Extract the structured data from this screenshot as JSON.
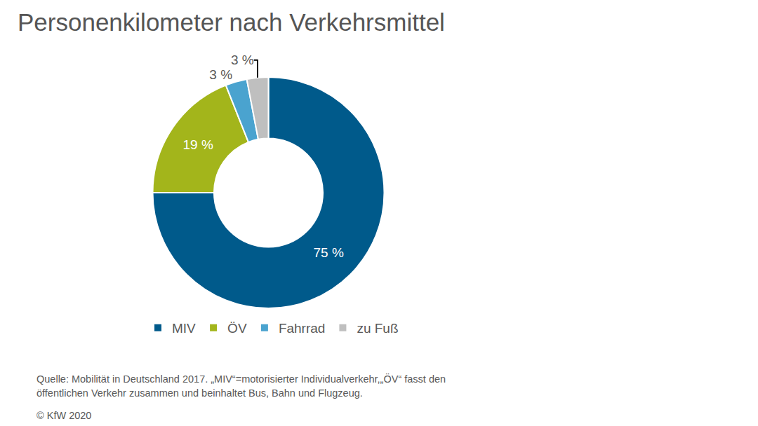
{
  "chart_data": {
    "type": "pie",
    "title": "Personenkilometer nach Verkehrsmittel",
    "categories": [
      "MIV",
      "ÖV",
      "Fahrrad",
      "zu Fuß"
    ],
    "values": [
      75,
      19,
      3,
      3
    ],
    "value_labels": [
      "75 %",
      "19 %",
      "3 %",
      "3 %"
    ],
    "colors": [
      "#005a8b",
      "#a3b51b",
      "#4aa3cf",
      "#bfbfbf"
    ],
    "data_labels": true,
    "legend": "bottom",
    "annotations": [
      "Quelle: Mobilität in Deutschland 2017. „MIV“=motorisierter Individualverkehr,„ÖV“ fasst den",
      "öffentlichen Verkehr zusammen und beinhaltet Bus, Bahn und Flugzeug.",
      "© KfW 2020"
    ]
  }
}
